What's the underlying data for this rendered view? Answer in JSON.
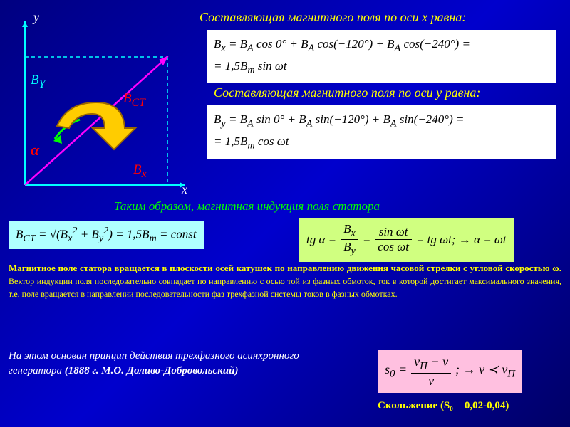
{
  "titles": {
    "x_component": "Составляющая магнитного поля по оси х равна:",
    "y_component": "Составляющая магнитного поля по оси у равна:",
    "induction": "Таким образом, магнитная индукция поля статора"
  },
  "equations": {
    "bx_line1": "B<sub>x</sub> = B<sub>A</sub> cos 0° + B<sub>A</sub> cos(−120°) + B<sub>A</sub> cos(−240°) =",
    "bx_line2": "= 1,5B<sub>m</sub> sin ωt",
    "by_line1": "B<sub>y</sub> = B<sub>A</sub> sin 0° + B<sub>A</sub> sin(−120°) + B<sub>A</sub> sin(−240°) =",
    "by_line2": "= 1,5B<sub>m</sub> cos ωt",
    "bct": "B<sub>CT</sub> = √(B<sub>x</sub><sup>2</sup> + B<sub>y</sub><sup>2</sup>) = 1,5B<sub>m</sub> = const",
    "tga_lhs": "tg α =",
    "tga_f1n": "B<sub>x</sub>",
    "tga_f1d": "B<sub>y</sub>",
    "tga_mid": "=",
    "tga_f2n": "sin ωt",
    "tga_f2d": "cos ωt",
    "tga_rhs": "= tg ωt; → α = ωt",
    "slip_lhs": "s<sub>0</sub> =",
    "slip_num": "v<sub>П</sub> − v",
    "slip_den": "v",
    "slip_rhs": "; → v ≺ v<sub>П</sub>"
  },
  "paragraphs": {
    "main_yellow": "Магнитное поле статора вращается в плоскости осей катушек по направлению движения часовой стрелки с угловой скоростью ω. <span style='font-weight:normal;font-size:12px'>Вектор индукции поля последовательно совпадает по направлению с осью той из фазных обмоток, ток в которой достигает максимального значения, т.е. поле вращается в направлении последовательности фаз трехфазной системы токов в фазных обмотках.</span>",
    "white_text": "На этом основан принцип действия трехфазного асинхронного генератора <b>(1888 г. М.О. Доливо-Добровольский)</b>",
    "slip_label": "Скольжение (S₀ = 0,02-0,04)"
  },
  "diagram": {
    "labels": {
      "y": "y",
      "x": "x",
      "by": "B<sub>Y</sub>",
      "bx": "B<sub>x</sub>",
      "bct": "B<sub>CT</sub>",
      "alpha": "α"
    },
    "colors": {
      "axis": "#00ffff",
      "vector": "#ff0000",
      "by_label": "#00ffff",
      "bx_label": "#ff0000",
      "bct_label": "#ff0000",
      "alpha_label": "#ff0000",
      "arrow_fill": "#ffcc00",
      "arrow_stroke": "#cc9900",
      "arc": "#00ff00"
    }
  }
}
